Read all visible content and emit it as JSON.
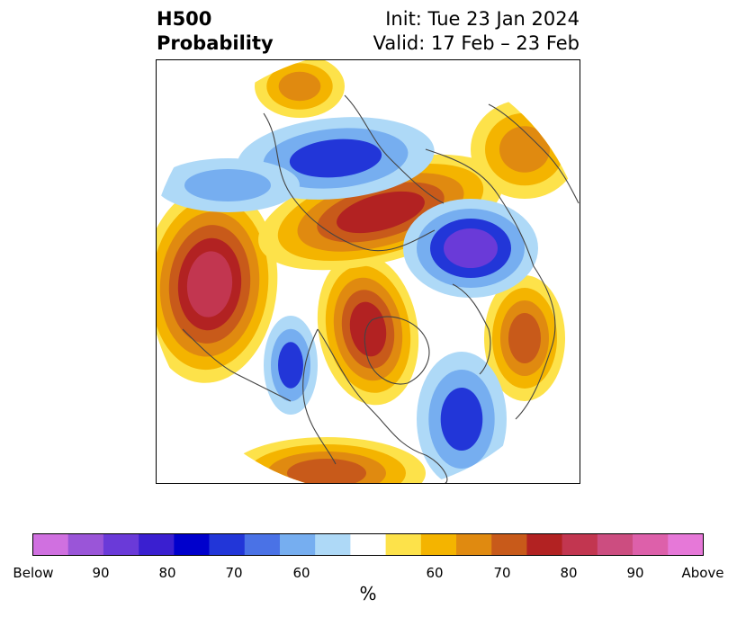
{
  "title": {
    "left_line1": "H500",
    "left_line2": "Probability",
    "right_line1": "Init: Tue 23 Jan 2024",
    "right_line2": "Valid: 17 Feb – 23 Feb"
  },
  "colorbar": {
    "unit": "%",
    "colors": [
      "#d070e0",
      "#9a55d8",
      "#6a3ad8",
      "#3a1fd0",
      "#0000cc",
      "#2236d8",
      "#4a72e6",
      "#76aef0",
      "#aed9f7",
      "#ffffff",
      "#fde24a",
      "#f4b400",
      "#e08a10",
      "#c85a1a",
      "#b22222",
      "#c23650",
      "#cc4d80",
      "#dd60aa",
      "#e678d8"
    ],
    "labels": [
      "Below",
      "90",
      "80",
      "70",
      "60",
      "60",
      "70",
      "80",
      "90",
      "Above"
    ]
  },
  "map": {
    "projection": "north-polar-stereographic",
    "colors": {
      "below_light": "#aed9f7",
      "below_mid": "#76aef0",
      "below_strong": "#2236d8",
      "below_extreme": "#6a3ad8",
      "above_light": "#fde24a",
      "above_mid": "#f4b400",
      "above_strong": "#e08a10",
      "above_darker": "#c85a1a",
      "above_red": "#b22222",
      "above_crimson": "#c23650",
      "above_extreme": "#dd60aa",
      "coastline": "#444444"
    }
  }
}
